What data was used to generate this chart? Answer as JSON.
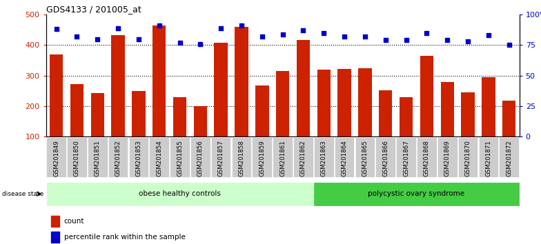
{
  "title": "GDS4133 / 201005_at",
  "samples": [
    "GSM201849",
    "GSM201850",
    "GSM201851",
    "GSM201852",
    "GSM201853",
    "GSM201854",
    "GSM201855",
    "GSM201856",
    "GSM201857",
    "GSM201858",
    "GSM201859",
    "GSM201861",
    "GSM201862",
    "GSM201863",
    "GSM201864",
    "GSM201865",
    "GSM201866",
    "GSM201867",
    "GSM201868",
    "GSM201869",
    "GSM201870",
    "GSM201871",
    "GSM201872"
  ],
  "counts": [
    370,
    272,
    243,
    432,
    250,
    465,
    230,
    200,
    408,
    460,
    268,
    315,
    418,
    320,
    323,
    325,
    251,
    229,
    365,
    280,
    246,
    295,
    218
  ],
  "percentiles": [
    88,
    82,
    80,
    89,
    80,
    91,
    77,
    76,
    89,
    91,
    82,
    84,
    87,
    85,
    82,
    82,
    79,
    79,
    85,
    79,
    78,
    83,
    75
  ],
  "group1_label": "obese healthy controls",
  "group2_label": "polycystic ovary syndrome",
  "group1_count": 13,
  "group2_count": 10,
  "bar_color": "#cc2200",
  "dot_color": "#0000cc",
  "group1_bg": "#ccffcc",
  "group2_bg": "#44cc44",
  "tick_bg": "#cccccc",
  "ylim_left": [
    100,
    500
  ],
  "ylim_right": [
    0,
    100
  ],
  "yticks_left": [
    100,
    200,
    300,
    400,
    500
  ],
  "yticks_right": [
    0,
    25,
    50,
    75,
    100
  ],
  "ytick_labels_right": [
    "0",
    "25",
    "50",
    "75",
    "100%"
  ],
  "legend_count_label": "count",
  "legend_pct_label": "percentile rank within the sample"
}
